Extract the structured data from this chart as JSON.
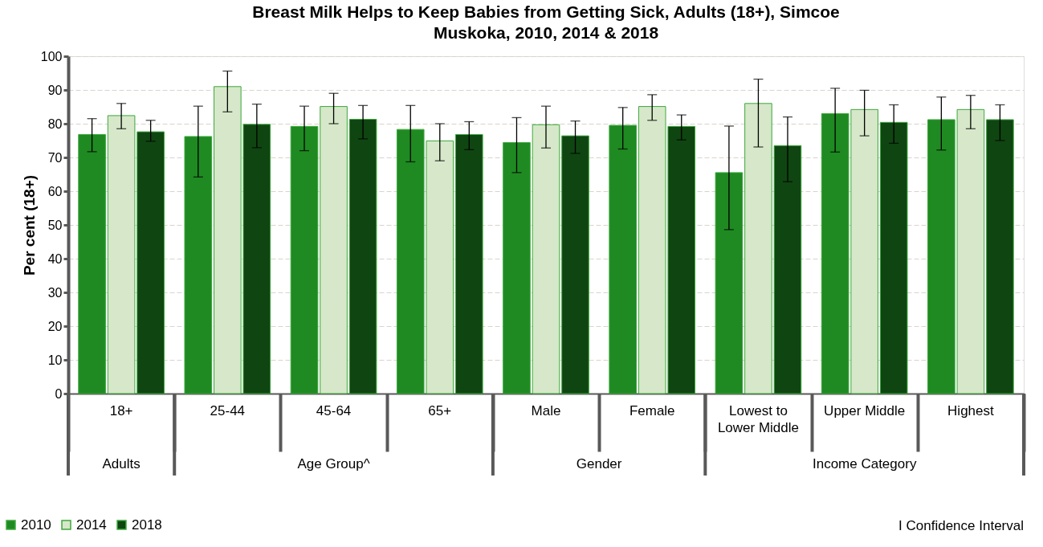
{
  "chart_data": {
    "type": "bar",
    "title": "Breast Milk Helps to Keep Babies from Getting Sick, Adults (18+), Simcoe Muskoka, 2010, 2014 & 2018",
    "ylabel": "Per cent (18+)",
    "categories": [
      "18+",
      "25-44",
      "45-64",
      "65+",
      "Male",
      "Female",
      "Lowest to Lower Middle",
      "Upper Middle",
      "Highest"
    ],
    "series": [
      {
        "name": "2010",
        "color": "#1f8a22",
        "values": [
          76.8,
          76.2,
          79.2,
          78.3,
          74.4,
          79.5,
          65.5,
          83.0,
          81.2
        ],
        "errors": [
          [
            71.7,
            81.5
          ],
          [
            64.2,
            85.2
          ],
          [
            72.0,
            85.2
          ],
          [
            68.7,
            85.4
          ],
          [
            65.5,
            81.8
          ],
          [
            72.5,
            84.8
          ],
          [
            48.6,
            79.3
          ],
          [
            71.6,
            90.5
          ],
          [
            72.2,
            87.9
          ]
        ]
      },
      {
        "name": "2014",
        "color": "#d6e8c9",
        "values": [
          82.4,
          91.0,
          85.1,
          74.9,
          79.7,
          85.1,
          86.0,
          84.2,
          84.2
        ],
        "errors": [
          [
            78.5,
            86.0
          ],
          [
            83.5,
            95.6
          ],
          [
            80.0,
            89.0
          ],
          [
            69.0,
            80.0
          ],
          [
            72.8,
            85.2
          ],
          [
            81.0,
            88.6
          ],
          [
            73.1,
            93.2
          ],
          [
            76.4,
            89.9
          ],
          [
            78.5,
            88.4
          ]
        ]
      },
      {
        "name": "2018",
        "color": "#0f4511",
        "values": [
          77.6,
          79.8,
          81.3,
          76.8,
          76.4,
          79.2,
          73.5,
          80.4,
          81.2
        ],
        "errors": [
          [
            74.8,
            81.0
          ],
          [
            72.9,
            85.8
          ],
          [
            75.5,
            85.4
          ],
          [
            72.3,
            80.6
          ],
          [
            71.2,
            80.8
          ],
          [
            75.2,
            82.6
          ],
          [
            62.8,
            82.0
          ],
          [
            74.2,
            85.6
          ],
          [
            75.0,
            85.6
          ]
        ]
      }
    ],
    "ylim": [
      0,
      100
    ],
    "yticks": [
      0,
      10,
      20,
      30,
      40,
      50,
      60,
      70,
      80,
      90,
      100
    ],
    "grid": "y",
    "legend": "bottom left",
    "annotations": [
      "Adults",
      "Age Group^",
      "Gender",
      "Income Category",
      "I Confidence Interval"
    ]
  }
}
